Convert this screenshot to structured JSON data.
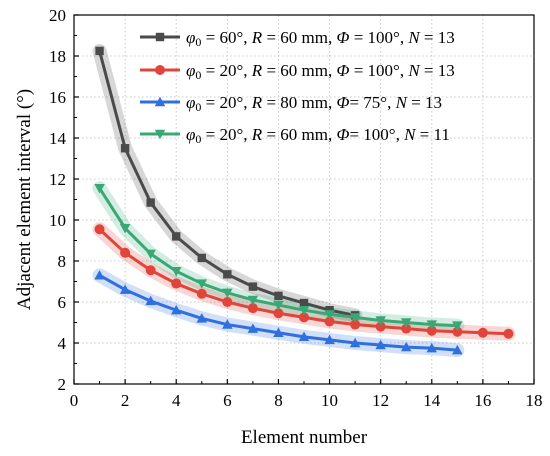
{
  "chart_data": {
    "type": "line",
    "xlabel": "Element number",
    "ylabel": "Adjacent element interval (°)",
    "xlim": [
      0,
      18
    ],
    "ylim": [
      2,
      20
    ],
    "xticks": [
      0,
      2,
      4,
      6,
      8,
      10,
      12,
      14,
      16,
      18
    ],
    "yticks": [
      2,
      4,
      6,
      8,
      10,
      12,
      14,
      16,
      18,
      20
    ],
    "grid": true,
    "legend_position": "top-right",
    "series": [
      {
        "legend": {
          "p1": "φ",
          "sub": "0",
          "p2": " = 60°, ",
          "p3": "R",
          "p4": " = 60 mm, ",
          "p5": "Φ",
          "p6": " = 100°, ",
          "p7": "N",
          "p8": " = 13"
        },
        "color": "#4a4a4a",
        "marker": "square",
        "x": [
          1,
          2,
          3,
          4,
          5,
          6,
          7,
          8,
          9,
          10,
          11
        ],
        "y": [
          18.25,
          13.5,
          10.85,
          9.2,
          8.15,
          7.35,
          6.75,
          6.3,
          5.95,
          5.6,
          5.35
        ]
      },
      {
        "legend": {
          "p1": "φ",
          "sub": "0",
          "p2": " = 20°, ",
          "p3": "R",
          "p4": " = 60 mm, ",
          "p5": "Φ",
          "p6": " = 100°, ",
          "p7": "N",
          "p8": " = 13"
        },
        "color": "#e0443a",
        "marker": "circle",
        "x": [
          1,
          2,
          3,
          4,
          5,
          6,
          7,
          8,
          9,
          10,
          11,
          12,
          13,
          14,
          15,
          16,
          17
        ],
        "y": [
          9.55,
          8.4,
          7.55,
          6.9,
          6.4,
          6.0,
          5.7,
          5.45,
          5.25,
          5.05,
          4.9,
          4.8,
          4.7,
          4.6,
          4.55,
          4.5,
          4.45
        ]
      },
      {
        "legend": {
          "p1": "φ",
          "sub": "0",
          "p2": " = 20°, ",
          "p3": "R",
          "p4": " = 80 mm, ",
          "p5": "Φ",
          "p6": "= 75°, ",
          "p7": "N",
          "p8": " = 13"
        },
        "color": "#2f6fde",
        "marker": "triangle-up",
        "x": [
          1,
          2,
          3,
          4,
          5,
          6,
          7,
          8,
          9,
          10,
          11,
          12,
          13,
          14,
          15
        ],
        "y": [
          7.3,
          6.6,
          6.05,
          5.6,
          5.2,
          4.9,
          4.7,
          4.5,
          4.3,
          4.15,
          4.0,
          3.9,
          3.8,
          3.75,
          3.65
        ]
      },
      {
        "legend": {
          "p1": "φ",
          "sub": "0",
          "p2": " = 20°, ",
          "p3": "R",
          "p4": " = 60 mm, ",
          "p5": "Φ",
          "p6": "= 100°, ",
          "p7": "N",
          "p8": " = 11"
        },
        "color": "#3aa876",
        "marker": "triangle-down",
        "x": [
          1,
          2,
          3,
          4,
          5,
          6,
          7,
          8,
          9,
          10,
          11,
          12,
          13,
          14,
          15
        ],
        "y": [
          11.55,
          9.6,
          8.35,
          7.5,
          6.9,
          6.45,
          6.1,
          5.85,
          5.6,
          5.4,
          5.25,
          5.1,
          5.0,
          4.9,
          4.85
        ]
      }
    ]
  }
}
